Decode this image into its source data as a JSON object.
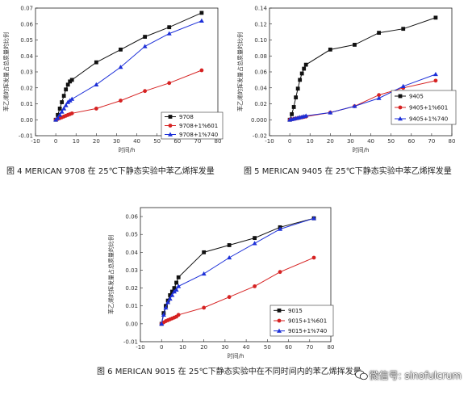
{
  "figures": [
    {
      "caption": "图 4 MERICAN 9708 在 25℃下静态实验中苯乙烯挥发量",
      "ylabel": "苯乙烯的挥发量占总质量的比例",
      "xlabel": "时间/h"
    },
    {
      "caption": "图 5 MERICAN 9405 在 25℃下静态实验中苯乙烯挥发量",
      "ylabel": "苯乙烯的挥发量占总质量的比例",
      "xlabel": "时间/h"
    },
    {
      "caption": "图 6 MERICAN 9015 在 25℃下静态实验中在不同时间内的苯乙烯挥发量",
      "ylabel": "苯乙烯的挥发量占总质量的比例",
      "xlabel": "时间/h"
    }
  ],
  "watermark": {
    "text": "微信号: sinofulcrum",
    "icon": "wechat-logo-icon"
  },
  "colors": {
    "black": "#111111",
    "red": "#d62222",
    "blue": "#1c2fd8"
  },
  "chart_data": [
    {
      "type": "line",
      "xlabel": "时间/h",
      "ylabel": "苯乙烯的挥发量占总质量的比例",
      "xlim": [
        -10,
        80
      ],
      "ylim": [
        -0.01,
        0.07
      ],
      "xticks": [
        -10,
        0,
        10,
        20,
        30,
        40,
        50,
        60,
        70,
        80
      ],
      "yticks": [
        -0.01,
        0.0,
        0.01,
        0.02,
        0.03,
        0.04,
        0.05,
        0.06,
        0.07
      ],
      "ytick_labels": [
        "-0.01",
        "0.00",
        "0.01",
        "0.02",
        "0.03",
        "0.04",
        "0.05",
        "0.06",
        "0.07"
      ],
      "legend_position": "bottom-right",
      "series": [
        {
          "name": "9708",
          "color": "#111111",
          "marker": "square",
          "x": [
            0,
            1,
            2,
            3,
            4,
            5,
            6,
            7,
            8,
            20,
            32,
            44,
            56,
            72
          ],
          "y": [
            0.0,
            0.003,
            0.007,
            0.011,
            0.015,
            0.019,
            0.022,
            0.024,
            0.025,
            0.036,
            0.044,
            0.052,
            0.058,
            0.067
          ]
        },
        {
          "name": "9708+1%601",
          "color": "#d62222",
          "marker": "circle",
          "x": [
            0,
            1,
            2,
            3,
            4,
            5,
            6,
            7,
            8,
            20,
            32,
            44,
            56,
            72
          ],
          "y": [
            0.0,
            0.0005,
            0.001,
            0.0015,
            0.002,
            0.0025,
            0.003,
            0.0035,
            0.004,
            0.007,
            0.012,
            0.018,
            0.023,
            0.031
          ]
        },
        {
          "name": "9708+1%740",
          "color": "#1c2fd8",
          "marker": "triangle",
          "x": [
            0,
            1,
            2,
            3,
            4,
            5,
            6,
            7,
            8,
            20,
            32,
            44,
            56,
            72
          ],
          "y": [
            0.0,
            0.001,
            0.003,
            0.005,
            0.007,
            0.009,
            0.011,
            0.012,
            0.013,
            0.022,
            0.033,
            0.046,
            0.054,
            0.062
          ]
        }
      ]
    },
    {
      "type": "line",
      "xlabel": "时间/h",
      "ylabel": "苯乙烯的挥发量占总质量的比例",
      "xlim": [
        -10,
        80
      ],
      "ylim": [
        -0.02,
        0.14
      ],
      "xticks": [
        -10,
        0,
        10,
        20,
        30,
        40,
        50,
        60,
        70,
        80
      ],
      "yticks": [
        -0.02,
        0.0,
        0.02,
        0.04,
        0.06,
        0.08,
        0.1,
        0.12,
        0.14
      ],
      "ytick_labels": [
        "-0.02",
        "0.000",
        "0.02",
        "0.04",
        "0.06",
        "0.08",
        "0.10",
        "0.12",
        "0.14"
      ],
      "legend_position": "right",
      "series": [
        {
          "name": "9405",
          "color": "#111111",
          "marker": "square",
          "x": [
            0,
            1,
            2,
            3,
            4,
            5,
            6,
            7,
            8,
            20,
            32,
            44,
            56,
            72
          ],
          "y": [
            0.0,
            0.007,
            0.016,
            0.028,
            0.039,
            0.05,
            0.058,
            0.064,
            0.069,
            0.088,
            0.094,
            0.109,
            0.114,
            0.128
          ]
        },
        {
          "name": "9405+1%601",
          "color": "#d62222",
          "marker": "circle",
          "x": [
            0,
            1,
            2,
            3,
            4,
            5,
            6,
            7,
            8,
            20,
            32,
            44,
            56,
            72
          ],
          "y": [
            0.0,
            0.0005,
            0.001,
            0.0015,
            0.002,
            0.0025,
            0.003,
            0.0035,
            0.004,
            0.009,
            0.017,
            0.031,
            0.04,
            0.049
          ]
        },
        {
          "name": "9405+1%740",
          "color": "#1c2fd8",
          "marker": "triangle",
          "x": [
            0,
            1,
            2,
            3,
            4,
            5,
            6,
            7,
            8,
            20,
            32,
            44,
            56,
            72
          ],
          "y": [
            0.0,
            0.0006,
            0.0012,
            0.0018,
            0.0024,
            0.003,
            0.0036,
            0.0042,
            0.005,
            0.009,
            0.017,
            0.027,
            0.042,
            0.057
          ]
        }
      ]
    },
    {
      "type": "line",
      "xlabel": "时间/h",
      "ylabel": "苯乙烯的挥发量占总质量的比例",
      "xlim": [
        -10,
        80
      ],
      "ylim": [
        -0.01,
        0.065
      ],
      "xticks": [
        -10,
        0,
        10,
        20,
        30,
        40,
        50,
        60,
        70,
        80
      ],
      "yticks": [
        -0.01,
        0.0,
        0.01,
        0.02,
        0.03,
        0.04,
        0.05,
        0.06
      ],
      "ytick_labels": [
        "-0.01",
        "0.00",
        "0.01",
        "0.02",
        "0.03",
        "0.04",
        "0.05",
        "0.06"
      ],
      "legend_position": "bottom-right",
      "series": [
        {
          "name": "9015",
          "color": "#111111",
          "marker": "square",
          "x": [
            0,
            1,
            2,
            3,
            4,
            5,
            6,
            7,
            8,
            20,
            32,
            44,
            56,
            72
          ],
          "y": [
            0.0,
            0.006,
            0.01,
            0.013,
            0.016,
            0.018,
            0.02,
            0.023,
            0.026,
            0.04,
            0.044,
            0.048,
            0.054,
            0.059
          ]
        },
        {
          "name": "9015+1%601",
          "color": "#d62222",
          "marker": "circle",
          "x": [
            0,
            1,
            2,
            3,
            4,
            5,
            6,
            7,
            8,
            20,
            32,
            44,
            56,
            72
          ],
          "y": [
            0.0,
            0.0008,
            0.0015,
            0.002,
            0.0025,
            0.003,
            0.0035,
            0.004,
            0.005,
            0.009,
            0.015,
            0.021,
            0.029,
            0.037
          ]
        },
        {
          "name": "9015+1%740",
          "color": "#1c2fd8",
          "marker": "triangle",
          "x": [
            0,
            1,
            2,
            3,
            4,
            5,
            6,
            7,
            8,
            20,
            32,
            44,
            56,
            72
          ],
          "y": [
            0.0,
            0.005,
            0.009,
            0.012,
            0.014,
            0.016,
            0.018,
            0.019,
            0.021,
            0.028,
            0.037,
            0.045,
            0.053,
            0.059
          ]
        }
      ]
    }
  ]
}
